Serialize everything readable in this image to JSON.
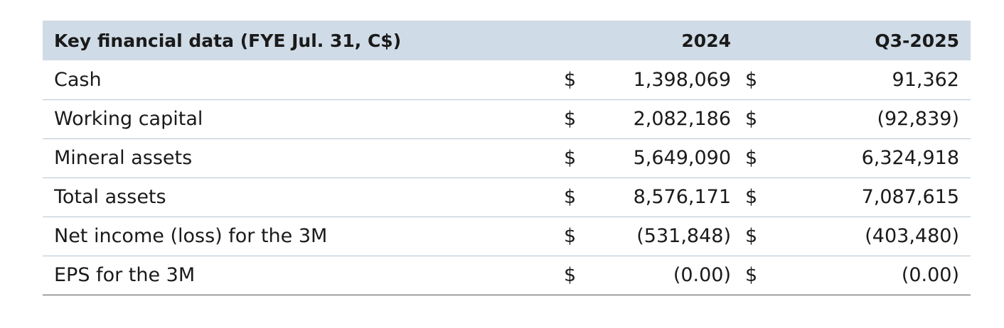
{
  "table": {
    "headers": {
      "label": "Key financial data (FYE Jul. 31, C$)",
      "col1": "2024",
      "col2": "Q3-2025"
    },
    "rows": [
      {
        "label": "Cash",
        "cur1": "$",
        "v1": "1,398,069",
        "cur2": "$",
        "v2": "91,362"
      },
      {
        "label": "Working capital",
        "cur1": "$",
        "v1": "2,082,186",
        "cur2": "$",
        "v2": "(92,839)"
      },
      {
        "label": "Mineral assets",
        "cur1": "$",
        "v1": "5,649,090",
        "cur2": "$",
        "v2": "6,324,918"
      },
      {
        "label": "Total assets",
        "cur1": "$",
        "v1": "8,576,171",
        "cur2": "$",
        "v2": "7,087,615"
      },
      {
        "label": "Net income (loss) for the 3M",
        "cur1": "$",
        "v1": "(531,848)",
        "cur2": "$",
        "v2": "(403,480)"
      },
      {
        "label": "EPS for the 3M",
        "cur1": "$",
        "v1": "(0.00)",
        "cur2": "$",
        "v2": "(0.00)"
      }
    ]
  }
}
